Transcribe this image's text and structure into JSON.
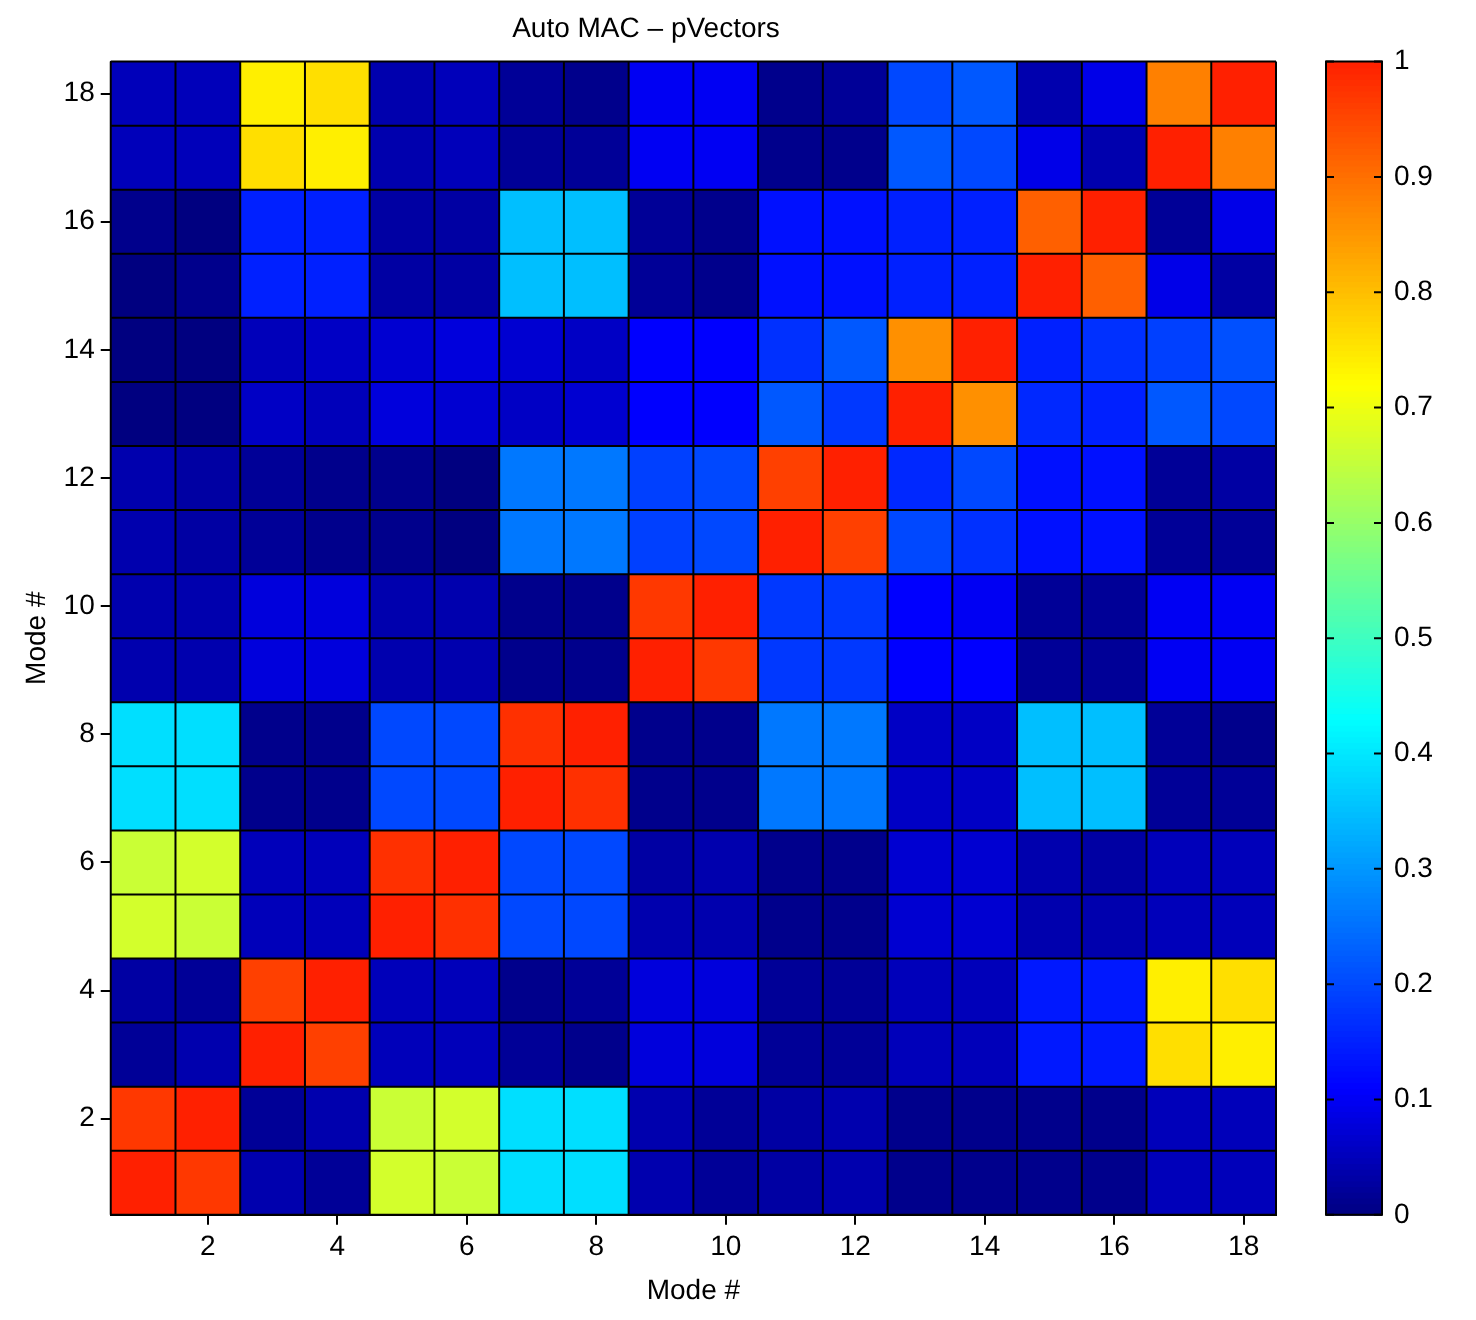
{
  "chart_data": {
    "type": "heatmap",
    "title": "Auto MAC – pVectors",
    "xlabel": "Mode #",
    "ylabel": "Mode #",
    "categories": [
      null,
      "2",
      null,
      "4",
      null,
      "6",
      null,
      "8",
      null,
      "10",
      null,
      "12",
      null,
      "14",
      null,
      "16",
      null,
      "18"
    ],
    "y_categories": [
      "18",
      null,
      "16",
      null,
      "14",
      null,
      "12",
      null,
      "10",
      null,
      "8",
      null,
      "6",
      null,
      "4",
      null,
      "2",
      null
    ],
    "cells": [
      [
        0.05,
        0.05,
        0.74,
        0.76,
        0.04,
        0.05,
        0.02,
        0.01,
        0.1,
        0.1,
        0.01,
        0.02,
        0.2,
        0.22,
        0.04,
        0.09,
        0.88,
        1
      ],
      [
        0.05,
        0.05,
        0.76,
        0.74,
        0.04,
        0.05,
        0.02,
        0.02,
        0.1,
        0.1,
        0.01,
        0.01,
        0.22,
        0.2,
        0.09,
        0.04,
        1,
        0.88
      ],
      [
        0.01,
        0.0,
        0.15,
        0.15,
        0.03,
        0.03,
        0.35,
        0.35,
        0.02,
        0.01,
        0.13,
        0.13,
        0.15,
        0.15,
        0.92,
        1,
        0.02,
        0.09
      ],
      [
        0.0,
        0.01,
        0.15,
        0.15,
        0.03,
        0.03,
        0.35,
        0.35,
        0.02,
        0.01,
        0.13,
        0.13,
        0.15,
        0.15,
        1,
        0.92,
        0.09,
        0.03
      ],
      [
        0.0,
        0.0,
        0.05,
        0.06,
        0.07,
        0.08,
        0.07,
        0.06,
        0.11,
        0.11,
        0.17,
        0.22,
        0.86,
        1,
        0.15,
        0.17,
        0.19,
        0.21
      ],
      [
        0.0,
        0.0,
        0.06,
        0.05,
        0.08,
        0.07,
        0.06,
        0.07,
        0.11,
        0.11,
        0.22,
        0.18,
        1,
        0.86,
        0.16,
        0.15,
        0.22,
        0.2
      ],
      [
        0.04,
        0.03,
        0.02,
        0.01,
        0.01,
        0.0,
        0.26,
        0.26,
        0.19,
        0.2,
        0.96,
        1,
        0.16,
        0.2,
        0.13,
        0.13,
        0.02,
        0.03
      ],
      [
        0.04,
        0.03,
        0.02,
        0.01,
        0.01,
        0.0,
        0.26,
        0.26,
        0.19,
        0.2,
        1,
        0.96,
        0.2,
        0.17,
        0.13,
        0.13,
        0.02,
        0.02
      ],
      [
        0.04,
        0.04,
        0.08,
        0.08,
        0.04,
        0.04,
        0.01,
        0.01,
        0.97,
        1,
        0.18,
        0.18,
        0.11,
        0.1,
        0.02,
        0.02,
        0.1,
        0.1
      ],
      [
        0.04,
        0.04,
        0.08,
        0.08,
        0.04,
        0.04,
        0.01,
        0.01,
        1,
        0.97,
        0.18,
        0.18,
        0.11,
        0.11,
        0.02,
        0.02,
        0.1,
        0.1
      ],
      [
        0.39,
        0.39,
        0.01,
        0.01,
        0.2,
        0.2,
        0.98,
        1,
        0.01,
        0.01,
        0.26,
        0.26,
        0.06,
        0.06,
        0.35,
        0.35,
        0.02,
        0.01
      ],
      [
        0.39,
        0.39,
        0.01,
        0.01,
        0.2,
        0.2,
        1,
        0.98,
        0.01,
        0.01,
        0.26,
        0.26,
        0.06,
        0.06,
        0.35,
        0.35,
        0.02,
        0.02
      ],
      [
        0.66,
        0.67,
        0.05,
        0.05,
        0.98,
        1,
        0.2,
        0.2,
        0.03,
        0.04,
        0.01,
        0.01,
        0.07,
        0.07,
        0.04,
        0.03,
        0.05,
        0.05
      ],
      [
        0.67,
        0.66,
        0.05,
        0.05,
        1,
        0.98,
        0.2,
        0.2,
        0.04,
        0.04,
        0.01,
        0.01,
        0.07,
        0.07,
        0.04,
        0.04,
        0.05,
        0.05
      ],
      [
        0.03,
        0.02,
        0.96,
        1,
        0.05,
        0.05,
        0.01,
        0.02,
        0.08,
        0.08,
        0.02,
        0.02,
        0.05,
        0.05,
        0.14,
        0.14,
        0.74,
        0.76
      ],
      [
        0.02,
        0.04,
        1,
        0.96,
        0.05,
        0.05,
        0.02,
        0.01,
        0.08,
        0.08,
        0.02,
        0.02,
        0.05,
        0.05,
        0.14,
        0.14,
        0.76,
        0.74
      ],
      [
        0.97,
        1,
        0.02,
        0.04,
        0.66,
        0.67,
        0.39,
        0.39,
        0.04,
        0.02,
        0.03,
        0.04,
        0.01,
        0.01,
        0.01,
        0.01,
        0.05,
        0.05
      ],
      [
        1,
        0.97,
        0.04,
        0.02,
        0.67,
        0.66,
        0.39,
        0.39,
        0.04,
        0.02,
        0.03,
        0.04,
        0.01,
        0.01,
        0.01,
        0.01,
        0.05,
        0.05
      ]
    ],
    "clim": [
      0,
      1
    ],
    "cticks": [
      0,
      0.1,
      0.2,
      0.3,
      0.4,
      0.5,
      0.6,
      0.7,
      0.8,
      0.9,
      1
    ]
  }
}
